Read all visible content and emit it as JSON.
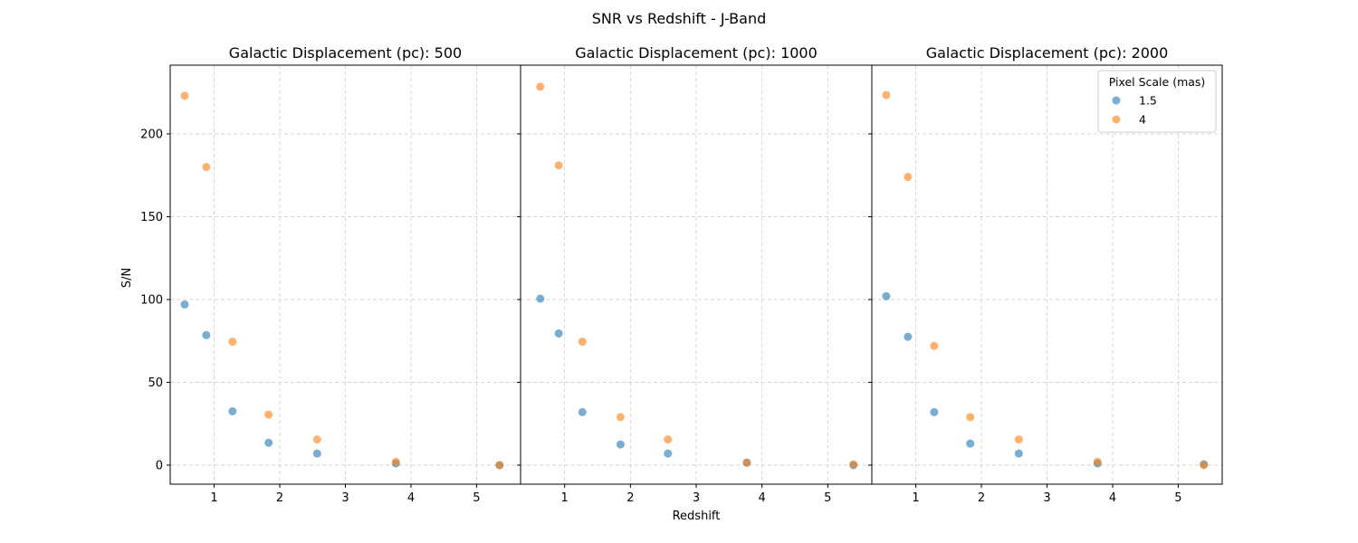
{
  "chart_data": {
    "type": "scatter",
    "title": "SNR vs Redshift - J-Band",
    "xlabel": "Redshift",
    "ylabel": "S/N",
    "xlim": [
      0.33,
      5.67
    ],
    "ylim": [
      -11.5,
      241.5
    ],
    "xticks": [
      1,
      2,
      3,
      4,
      5
    ],
    "yticks": [
      0,
      50,
      100,
      150,
      200
    ],
    "grid": true,
    "legend": {
      "title": "Pixel Scale (mas)",
      "placement": "top-right",
      "entries": [
        "1.5",
        "4"
      ]
    },
    "series_colors": [
      "#1f77b4",
      "#ff7f0e"
    ],
    "panels": [
      {
        "title": "Galactic Displacement (pc): 500",
        "series": [
          {
            "name": "1.5",
            "x": [
              0.55,
              0.88,
              1.28,
              1.83,
              2.57,
              3.77,
              5.35
            ],
            "y": [
              97,
              78.5,
              32.5,
              13.5,
              7,
              1,
              0
            ]
          },
          {
            "name": "4",
            "x": [
              0.55,
              0.88,
              1.28,
              1.83,
              2.57,
              3.77,
              5.35
            ],
            "y": [
              223,
              180,
              74.5,
              30.5,
              15.5,
              2,
              0
            ]
          }
        ]
      },
      {
        "title": "Galactic Displacement (pc): 1000",
        "series": [
          {
            "name": "1.5",
            "x": [
              0.63,
              0.91,
              1.27,
              1.85,
              2.57,
              3.77,
              5.39
            ],
            "y": [
              100.5,
              79.5,
              32,
              12.5,
              7,
              1.5,
              0
            ]
          },
          {
            "name": "4",
            "x": [
              0.63,
              0.91,
              1.27,
              1.85,
              2.57,
              3.77,
              5.39
            ],
            "y": [
              228.5,
              181,
              74.5,
              29,
              15.5,
              1.5,
              0.5
            ]
          }
        ]
      },
      {
        "title": "Galactic Displacement (pc): 2000",
        "series": [
          {
            "name": "1.5",
            "x": [
              0.55,
              0.88,
              1.28,
              1.83,
              2.57,
              3.77,
              5.39
            ],
            "y": [
              102,
              77.5,
              32,
              13,
              7,
              1,
              0.5
            ]
          },
          {
            "name": "4",
            "x": [
              0.55,
              0.88,
              1.28,
              1.83,
              2.57,
              3.77,
              5.39
            ],
            "y": [
              223.5,
              174,
              72,
              29,
              15.5,
              2,
              0
            ]
          }
        ]
      }
    ]
  }
}
